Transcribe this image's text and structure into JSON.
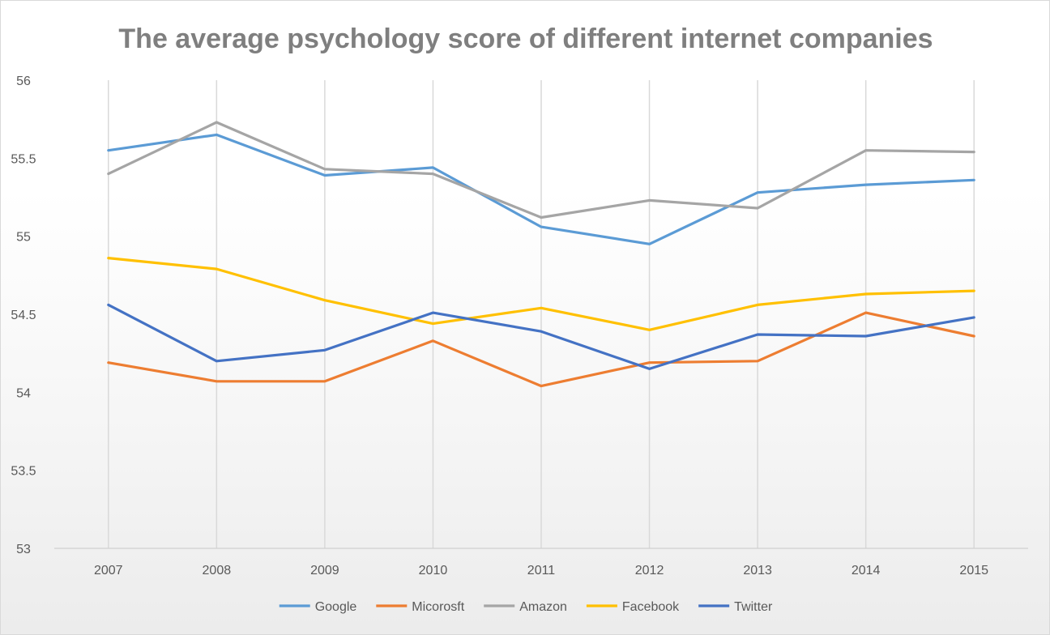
{
  "chart_data": {
    "type": "line",
    "title": "The average psychology score of different internet companies",
    "xlabel": "",
    "ylabel": "",
    "categories": [
      "2007",
      "2008",
      "2009",
      "2010",
      "2011",
      "2012",
      "2013",
      "2014",
      "2015"
    ],
    "ylim": [
      53,
      56
    ],
    "yticks": [
      "53",
      "53.5",
      "54",
      "54.5",
      "55",
      "55.5",
      "56"
    ],
    "grid": "vertical",
    "legend_position": "bottom",
    "series": [
      {
        "name": "Google",
        "color": "#5b9bd5",
        "values": [
          55.55,
          55.65,
          55.39,
          55.44,
          55.06,
          54.95,
          55.28,
          55.33,
          55.36
        ]
      },
      {
        "name": "Micorosft",
        "color": "#ed7d31",
        "values": [
          54.19,
          54.07,
          54.07,
          54.33,
          54.04,
          54.19,
          54.2,
          54.51,
          54.36
        ]
      },
      {
        "name": "Amazon",
        "color": "#a5a5a5",
        "values": [
          55.4,
          55.73,
          55.43,
          55.4,
          55.12,
          55.23,
          55.18,
          55.55,
          55.54
        ]
      },
      {
        "name": "Facebook",
        "color": "#ffc000",
        "values": [
          54.86,
          54.79,
          54.59,
          54.44,
          54.54,
          54.4,
          54.56,
          54.63,
          54.65
        ]
      },
      {
        "name": "Twitter",
        "color": "#4472c4",
        "values": [
          54.56,
          54.2,
          54.27,
          54.51,
          54.39,
          54.15,
          54.37,
          54.36,
          54.48
        ]
      }
    ]
  }
}
